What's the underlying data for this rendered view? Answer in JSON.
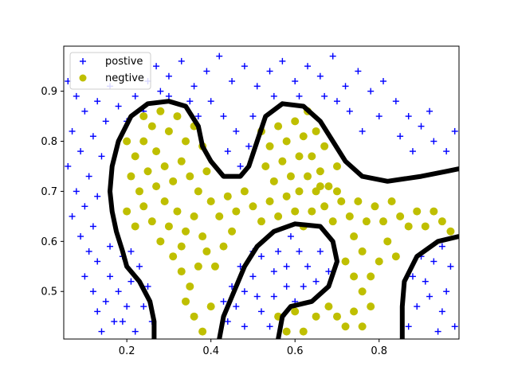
{
  "chart_data": {
    "type": "scatter",
    "title": "",
    "xlabel": "",
    "ylabel": "",
    "xlim": [
      0.05,
      0.99
    ],
    "ylim": [
      0.405,
      0.99
    ],
    "xticks": [
      0.2,
      0.4,
      0.6,
      0.8
    ],
    "yticks": [
      0.5,
      0.6,
      0.7,
      0.8,
      0.9
    ],
    "xtick_labels": [
      "0.2",
      "0.4",
      "0.6",
      "0.8"
    ],
    "ytick_labels": [
      "0.5",
      "0.6",
      "0.7",
      "0.8",
      "0.9"
    ],
    "grid": false,
    "legend_position": "top-left",
    "legend": [
      "postive",
      "negtive"
    ],
    "colors": {
      "positive": "#0000ff",
      "negative": "#bfbf00",
      "boundary": "#000000"
    },
    "series": [
      {
        "name": "postive",
        "marker": "plus",
        "points": [
          [
            0.06,
            0.92
          ],
          [
            0.08,
            0.89
          ],
          [
            0.1,
            0.86
          ],
          [
            0.07,
            0.82
          ],
          [
            0.09,
            0.78
          ],
          [
            0.06,
            0.75
          ],
          [
            0.11,
            0.73
          ],
          [
            0.08,
            0.7
          ],
          [
            0.1,
            0.67
          ],
          [
            0.07,
            0.65
          ],
          [
            0.12,
            0.63
          ],
          [
            0.09,
            0.61
          ],
          [
            0.11,
            0.58
          ],
          [
            0.13,
            0.56
          ],
          [
            0.1,
            0.53
          ],
          [
            0.12,
            0.5
          ],
          [
            0.15,
            0.48
          ],
          [
            0.13,
            0.46
          ],
          [
            0.17,
            0.44
          ],
          [
            0.14,
            0.42
          ],
          [
            0.16,
            0.53
          ],
          [
            0.18,
            0.5
          ],
          [
            0.2,
            0.47
          ],
          [
            0.19,
            0.44
          ],
          [
            0.22,
            0.42
          ],
          [
            0.21,
            0.52
          ],
          [
            0.23,
            0.55
          ],
          [
            0.25,
            0.51
          ],
          [
            0.24,
            0.47
          ],
          [
            0.26,
            0.44
          ],
          [
            0.16,
            0.59
          ],
          [
            0.19,
            0.57
          ],
          [
            0.21,
            0.58
          ],
          [
            0.13,
            0.69
          ],
          [
            0.14,
            0.77
          ],
          [
            0.12,
            0.81
          ],
          [
            0.15,
            0.84
          ],
          [
            0.13,
            0.88
          ],
          [
            0.16,
            0.91
          ],
          [
            0.18,
            0.87
          ],
          [
            0.2,
            0.84
          ],
          [
            0.22,
            0.89
          ],
          [
            0.25,
            0.92
          ],
          [
            0.24,
            0.86
          ],
          [
            0.27,
            0.95
          ],
          [
            0.3,
            0.93
          ],
          [
            0.33,
            0.96
          ],
          [
            0.36,
            0.91
          ],
          [
            0.39,
            0.94
          ],
          [
            0.42,
            0.97
          ],
          [
            0.45,
            0.92
          ],
          [
            0.48,
            0.95
          ],
          [
            0.51,
            0.91
          ],
          [
            0.54,
            0.94
          ],
          [
            0.57,
            0.96
          ],
          [
            0.6,
            0.92
          ],
          [
            0.63,
            0.95
          ],
          [
            0.66,
            0.93
          ],
          [
            0.69,
            0.97
          ],
          [
            0.72,
            0.91
          ],
          [
            0.75,
            0.94
          ],
          [
            0.78,
            0.9
          ],
          [
            0.81,
            0.92
          ],
          [
            0.84,
            0.88
          ],
          [
            0.87,
            0.85
          ],
          [
            0.9,
            0.83
          ],
          [
            0.93,
            0.8
          ],
          [
            0.96,
            0.78
          ],
          [
            0.98,
            0.82
          ],
          [
            0.92,
            0.86
          ],
          [
            0.88,
            0.78
          ],
          [
            0.85,
            0.81
          ],
          [
            0.8,
            0.85
          ],
          [
            0.76,
            0.82
          ],
          [
            0.73,
            0.86
          ],
          [
            0.7,
            0.88
          ],
          [
            0.4,
            0.88
          ],
          [
            0.43,
            0.85
          ],
          [
            0.46,
            0.82
          ],
          [
            0.44,
            0.78
          ],
          [
            0.47,
            0.75
          ],
          [
            0.49,
            0.79
          ],
          [
            0.5,
            0.85
          ],
          [
            0.37,
            0.85
          ],
          [
            0.35,
            0.88
          ],
          [
            0.3,
            0.89
          ],
          [
            0.28,
            0.9
          ],
          [
            0.55,
            0.89
          ],
          [
            0.61,
            0.89
          ],
          [
            0.67,
            0.89
          ],
          [
            0.58,
            0.51
          ],
          [
            0.55,
            0.54
          ],
          [
            0.52,
            0.57
          ],
          [
            0.5,
            0.53
          ],
          [
            0.48,
            0.5
          ],
          [
            0.46,
            0.47
          ],
          [
            0.44,
            0.44
          ],
          [
            0.48,
            0.43
          ],
          [
            0.52,
            0.46
          ],
          [
            0.55,
            0.49
          ],
          [
            0.58,
            0.55
          ],
          [
            0.61,
            0.58
          ],
          [
            0.63,
            0.55
          ],
          [
            0.66,
            0.58
          ],
          [
            0.68,
            0.54
          ],
          [
            0.65,
            0.52
          ],
          [
            0.62,
            0.51
          ],
          [
            0.6,
            0.48
          ],
          [
            0.57,
            0.45
          ],
          [
            0.54,
            0.43
          ],
          [
            0.5,
            0.58
          ],
          [
            0.47,
            0.55
          ],
          [
            0.45,
            0.51
          ],
          [
            0.43,
            0.48
          ],
          [
            0.51,
            0.49
          ],
          [
            0.59,
            0.61
          ],
          [
            0.56,
            0.58
          ],
          [
            0.87,
            0.43
          ],
          [
            0.89,
            0.47
          ],
          [
            0.91,
            0.52
          ],
          [
            0.93,
            0.56
          ],
          [
            0.95,
            0.59
          ],
          [
            0.97,
            0.55
          ],
          [
            0.92,
            0.49
          ],
          [
            0.95,
            0.46
          ],
          [
            0.98,
            0.43
          ],
          [
            0.9,
            0.57
          ],
          [
            0.88,
            0.53
          ],
          [
            0.96,
            0.5
          ],
          [
            0.94,
            0.42
          ]
        ]
      },
      {
        "name": "negtive",
        "marker": "circle",
        "points": [
          [
            0.2,
            0.8
          ],
          [
            0.22,
            0.77
          ],
          [
            0.24,
            0.8
          ],
          [
            0.26,
            0.83
          ],
          [
            0.28,
            0.86
          ],
          [
            0.3,
            0.82
          ],
          [
            0.32,
            0.85
          ],
          [
            0.34,
            0.8
          ],
          [
            0.36,
            0.83
          ],
          [
            0.38,
            0.79
          ],
          [
            0.21,
            0.73
          ],
          [
            0.23,
            0.7
          ],
          [
            0.25,
            0.74
          ],
          [
            0.27,
            0.71
          ],
          [
            0.29,
            0.75
          ],
          [
            0.31,
            0.72
          ],
          [
            0.33,
            0.76
          ],
          [
            0.35,
            0.73
          ],
          [
            0.37,
            0.7
          ],
          [
            0.39,
            0.74
          ],
          [
            0.2,
            0.66
          ],
          [
            0.22,
            0.63
          ],
          [
            0.24,
            0.67
          ],
          [
            0.26,
            0.64
          ],
          [
            0.28,
            0.6
          ],
          [
            0.3,
            0.63
          ],
          [
            0.32,
            0.66
          ],
          [
            0.34,
            0.62
          ],
          [
            0.36,
            0.65
          ],
          [
            0.38,
            0.61
          ],
          [
            0.4,
            0.68
          ],
          [
            0.42,
            0.65
          ],
          [
            0.44,
            0.69
          ],
          [
            0.46,
            0.66
          ],
          [
            0.48,
            0.7
          ],
          [
            0.5,
            0.67
          ],
          [
            0.52,
            0.64
          ],
          [
            0.54,
            0.68
          ],
          [
            0.56,
            0.65
          ],
          [
            0.58,
            0.69
          ],
          [
            0.31,
            0.57
          ],
          [
            0.33,
            0.54
          ],
          [
            0.35,
            0.51
          ],
          [
            0.37,
            0.55
          ],
          [
            0.39,
            0.58
          ],
          [
            0.41,
            0.55
          ],
          [
            0.43,
            0.59
          ],
          [
            0.45,
            0.62
          ],
          [
            0.34,
            0.48
          ],
          [
            0.36,
            0.45
          ],
          [
            0.38,
            0.42
          ],
          [
            0.4,
            0.47
          ],
          [
            0.33,
            0.59
          ],
          [
            0.29,
            0.68
          ],
          [
            0.27,
            0.78
          ],
          [
            0.24,
            0.85
          ],
          [
            0.52,
            0.82
          ],
          [
            0.54,
            0.79
          ],
          [
            0.56,
            0.83
          ],
          [
            0.58,
            0.8
          ],
          [
            0.6,
            0.84
          ],
          [
            0.62,
            0.81
          ],
          [
            0.64,
            0.77
          ],
          [
            0.66,
            0.74
          ],
          [
            0.68,
            0.71
          ],
          [
            0.7,
            0.75
          ],
          [
            0.53,
            0.75
          ],
          [
            0.55,
            0.72
          ],
          [
            0.57,
            0.76
          ],
          [
            0.59,
            0.73
          ],
          [
            0.61,
            0.7
          ],
          [
            0.63,
            0.73
          ],
          [
            0.65,
            0.7
          ],
          [
            0.67,
            0.67
          ],
          [
            0.69,
            0.64
          ],
          [
            0.71,
            0.68
          ],
          [
            0.73,
            0.65
          ],
          [
            0.75,
            0.68
          ],
          [
            0.77,
            0.64
          ],
          [
            0.79,
            0.67
          ],
          [
            0.81,
            0.64
          ],
          [
            0.83,
            0.68
          ],
          [
            0.85,
            0.65
          ],
          [
            0.87,
            0.63
          ],
          [
            0.89,
            0.66
          ],
          [
            0.91,
            0.63
          ],
          [
            0.93,
            0.66
          ],
          [
            0.95,
            0.64
          ],
          [
            0.97,
            0.62
          ],
          [
            0.74,
            0.61
          ],
          [
            0.76,
            0.58
          ],
          [
            0.72,
            0.56
          ],
          [
            0.74,
            0.53
          ],
          [
            0.76,
            0.5
          ],
          [
            0.78,
            0.53
          ],
          [
            0.8,
            0.56
          ],
          [
            0.82,
            0.6
          ],
          [
            0.84,
            0.57
          ],
          [
            0.78,
            0.47
          ],
          [
            0.74,
            0.46
          ],
          [
            0.7,
            0.45
          ],
          [
            0.72,
            0.43
          ],
          [
            0.76,
            0.43
          ],
          [
            0.56,
            0.45
          ],
          [
            0.58,
            0.42
          ],
          [
            0.62,
            0.42
          ],
          [
            0.65,
            0.45
          ],
          [
            0.68,
            0.47
          ],
          [
            0.6,
            0.46
          ],
          [
            0.63,
            0.86
          ],
          [
            0.65,
            0.82
          ],
          [
            0.67,
            0.79
          ],
          [
            0.61,
            0.77
          ],
          [
            0.66,
            0.71
          ],
          [
            0.7,
            0.7
          ],
          [
            0.6,
            0.66
          ],
          [
            0.62,
            0.63
          ],
          [
            0.64,
            0.66
          ]
        ]
      }
    ],
    "decision_boundary": [
      [
        [
          0.265,
          0.405
        ],
        [
          0.265,
          0.44
        ],
        [
          0.255,
          0.48
        ],
        [
          0.23,
          0.52
        ],
        [
          0.2,
          0.55
        ],
        [
          0.19,
          0.58
        ],
        [
          0.175,
          0.62
        ],
        [
          0.165,
          0.66
        ],
        [
          0.16,
          0.7
        ],
        [
          0.165,
          0.75
        ],
        [
          0.18,
          0.8
        ],
        [
          0.21,
          0.85
        ],
        [
          0.25,
          0.875
        ],
        [
          0.3,
          0.88
        ],
        [
          0.34,
          0.87
        ],
        [
          0.37,
          0.83
        ],
        [
          0.38,
          0.79
        ],
        [
          0.4,
          0.76
        ],
        [
          0.43,
          0.73
        ],
        [
          0.47,
          0.73
        ],
        [
          0.49,
          0.75
        ],
        [
          0.51,
          0.8
        ],
        [
          0.53,
          0.85
        ],
        [
          0.57,
          0.875
        ],
        [
          0.62,
          0.87
        ],
        [
          0.66,
          0.84
        ],
        [
          0.69,
          0.8
        ],
        [
          0.72,
          0.76
        ],
        [
          0.76,
          0.73
        ],
        [
          0.82,
          0.72
        ],
        [
          0.9,
          0.73
        ],
        [
          0.96,
          0.74
        ],
        [
          0.99,
          0.745
        ]
      ],
      [
        [
          0.42,
          0.405
        ],
        [
          0.43,
          0.45
        ],
        [
          0.45,
          0.49
        ],
        [
          0.48,
          0.55
        ],
        [
          0.51,
          0.59
        ],
        [
          0.55,
          0.62
        ],
        [
          0.6,
          0.635
        ],
        [
          0.66,
          0.63
        ],
        [
          0.69,
          0.6
        ],
        [
          0.7,
          0.56
        ],
        [
          0.68,
          0.51
        ],
        [
          0.64,
          0.48
        ],
        [
          0.59,
          0.47
        ],
        [
          0.57,
          0.45
        ],
        [
          0.56,
          0.405
        ]
      ],
      [
        [
          0.855,
          0.405
        ],
        [
          0.855,
          0.47
        ],
        [
          0.86,
          0.52
        ],
        [
          0.89,
          0.57
        ],
        [
          0.94,
          0.6
        ],
        [
          0.99,
          0.61
        ]
      ]
    ]
  }
}
